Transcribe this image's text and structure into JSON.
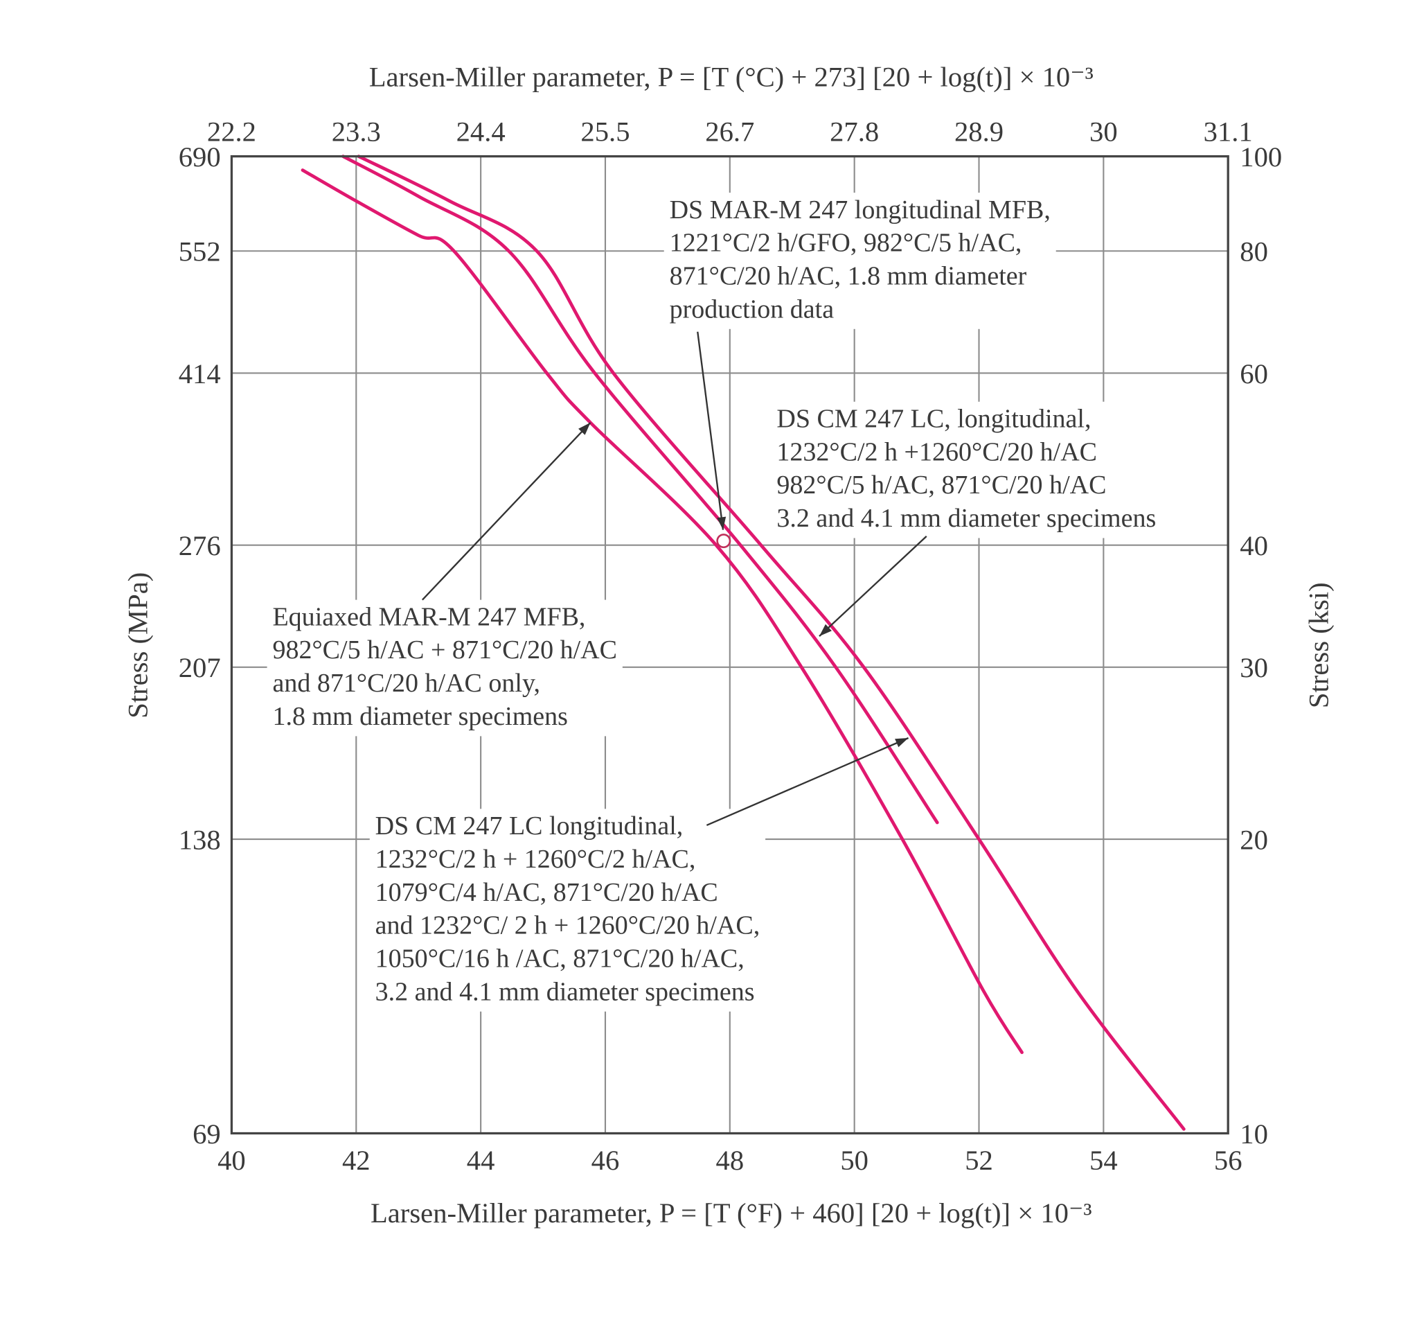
{
  "chart_data": {
    "type": "line",
    "title_top": "Larsen-Miller parameter, P = [T (°C) + 273] [20 + log(t)] × 10⁻³",
    "xlabel": "Larsen-Miller parameter, P = [T (°F) + 460] [20 + log(t)] × 10⁻³",
    "ylabel_left": "Stress (MPa)",
    "ylabel_right": "Stress (ksi)",
    "xlim": [
      40,
      56
    ],
    "ylim_ksi": [
      10,
      100
    ],
    "y_scale": "log",
    "grid": true,
    "x_ticks": [
      "40",
      "42",
      "44",
      "46",
      "48",
      "50",
      "52",
      "54",
      "56"
    ],
    "x_top_ticks": [
      "22.2",
      "23.3",
      "24.4",
      "25.5",
      "26.7",
      "27.8",
      "28.9",
      "30",
      "31.1"
    ],
    "y_ticks_ksi": [
      "10",
      "20",
      "30",
      "40",
      "60",
      "80",
      "100"
    ],
    "y_ticks_mpa": [
      "69",
      "138",
      "207",
      "276",
      "414",
      "552",
      "690"
    ],
    "curve_color": "#e0186f",
    "series": [
      {
        "id": "equiaxed",
        "points": [
          [
            41.14,
            96.8
          ],
          [
            42,
            90
          ],
          [
            43,
            83
          ],
          [
            43.57,
            80
          ],
          [
            45.06,
            60
          ],
          [
            45.76,
            53.4
          ],
          [
            47.78,
            40
          ],
          [
            49.15,
            30
          ],
          [
            50.77,
            20
          ],
          [
            52.07,
            14
          ],
          [
            52.69,
            12.1
          ]
        ]
      },
      {
        "id": "ds-cm-1260-20h",
        "points": [
          [
            41.79,
            100
          ],
          [
            43,
            91
          ],
          [
            44.45,
            80
          ],
          [
            45.83,
            60
          ],
          [
            48.17,
            40
          ],
          [
            49.7,
            30
          ],
          [
            51.33,
            20.8
          ]
        ]
      },
      {
        "id": "ds-cm-1079",
        "points": [
          [
            42.04,
            100
          ],
          [
            43.5,
            90
          ],
          [
            44.9,
            80
          ],
          [
            46.13,
            60
          ],
          [
            48.5,
            40
          ],
          [
            50.15,
            30
          ],
          [
            52.0,
            20
          ],
          [
            53.57,
            14
          ],
          [
            55.29,
            10.1
          ]
        ]
      }
    ],
    "data_point": {
      "x": 47.9,
      "y": 40.4
    },
    "annotations": [
      {
        "id": "ds-mar-m-247",
        "lines": [
          "DS MAR-M 247 longitudinal MFB,",
          "1221°C/2 h/GFO, 982°C/5 h/AC,",
          "871°C/20 h/AC, 1.8 mm diameter",
          "production data"
        ]
      },
      {
        "id": "ds-cm-247-lc-a",
        "lines": [
          "DS CM 247 LC, longitudinal,",
          "1232°C/2 h +1260°C/20 h/AC",
          "982°C/5 h/AC, 871°C/20 h/AC",
          "3.2 and 4.1 mm diameter specimens"
        ]
      },
      {
        "id": "equiaxed-mar-m-247",
        "lines": [
          "Equiaxed MAR-M 247 MFB,",
          "982°C/5 h/AC + 871°C/20 h/AC",
          "and 871°C/20 h/AC only,",
          "1.8 mm diameter specimens"
        ]
      },
      {
        "id": "ds-cm-247-lc-b",
        "lines": [
          "DS CM 247 LC longitudinal,",
          "1232°C/2 h + 1260°C/2 h/AC,",
          "1079°C/4 h/AC, 871°C/20 h/AC",
          "and 1232°C/ 2 h + 1260°C/20 h/AC,",
          "1050°C/16 h /AC, 871°C/20 h/AC,",
          "3.2 and 4.1 mm diameter specimens"
        ]
      }
    ]
  }
}
